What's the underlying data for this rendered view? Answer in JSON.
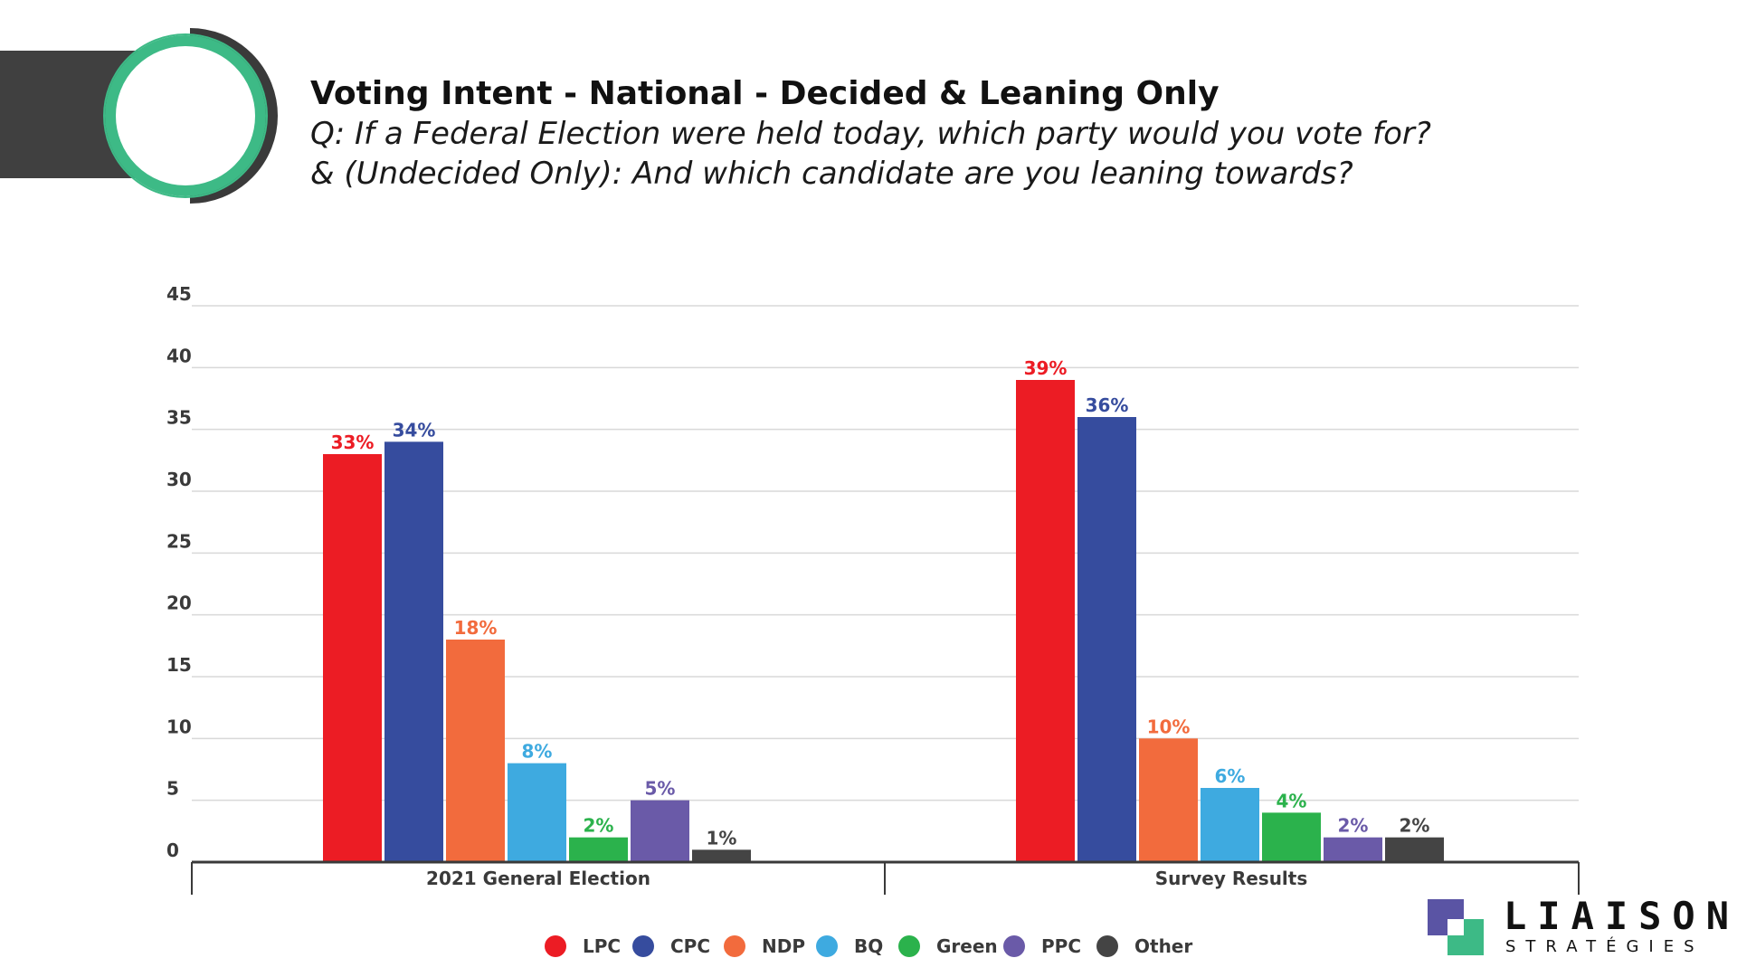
{
  "header": {
    "title": "Voting Intent - National - Decided & Leaning Only",
    "question_line1": "Q: If a Federal Election were held today, which party would you vote for?",
    "question_line2": "& (Undecided Only): And which candidate are you leaning towards?"
  },
  "brand": {
    "name": "LIAISON",
    "sub": "STRATÉGIES"
  },
  "colors": {
    "header_band": "#404040",
    "ring_outer": "#3a3a3a",
    "ring_green": "#3dba86",
    "grid": "#d9d9d9",
    "axis": "#3a3a3a",
    "brand_purple": "#5a54a4",
    "brand_green": "#3dba86"
  },
  "chart_data": {
    "type": "bar",
    "title": "Voting Intent - National - Decided & Leaning Only",
    "xlabel": "",
    "ylabel": "",
    "ylim": [
      0,
      45
    ],
    "yticks": [
      0,
      5,
      10,
      15,
      20,
      25,
      30,
      35,
      40,
      45
    ],
    "grid": true,
    "legend_position": "bottom-center",
    "categories": [
      "2021 General Election",
      "Survey Results"
    ],
    "series": [
      {
        "name": "LPC",
        "color": "#ec1c24",
        "values": [
          33,
          39
        ],
        "labels": [
          "33%",
          "39%"
        ]
      },
      {
        "name": "CPC",
        "color": "#364c9e",
        "values": [
          34,
          36
        ],
        "labels": [
          "34%",
          "36%"
        ]
      },
      {
        "name": "NDP",
        "color": "#f26b3d",
        "values": [
          18,
          10
        ],
        "labels": [
          "18%",
          "10%"
        ]
      },
      {
        "name": "BQ",
        "color": "#3eaae0",
        "values": [
          8,
          6
        ],
        "labels": [
          "8%",
          "6%"
        ]
      },
      {
        "name": "Green",
        "color": "#2bb24c",
        "values": [
          2,
          4
        ],
        "labels": [
          "2%",
          "4%"
        ]
      },
      {
        "name": "PPC",
        "color": "#6a5aa8",
        "values": [
          5,
          2
        ],
        "labels": [
          "5%",
          "2%"
        ]
      },
      {
        "name": "Other",
        "color": "#444444",
        "values": [
          1,
          2
        ],
        "labels": [
          "1%",
          "2%"
        ]
      }
    ]
  }
}
